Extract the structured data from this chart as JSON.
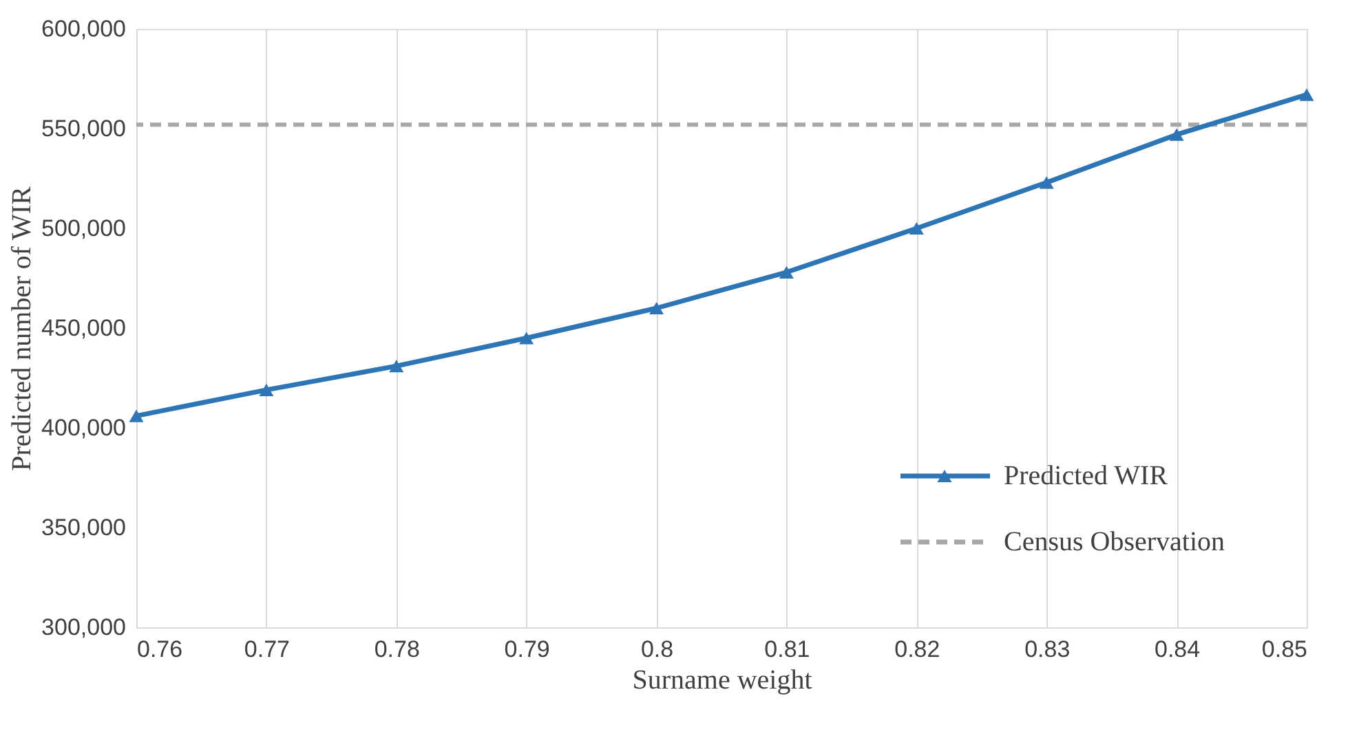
{
  "chart_data": {
    "type": "line",
    "xlabel": "Surname weight",
    "ylabel": "Predicted number of WIR",
    "x": [
      0.76,
      0.77,
      0.78,
      0.79,
      0.8,
      0.81,
      0.82,
      0.83,
      0.84,
      0.85
    ],
    "series": [
      {
        "name": "Predicted WIR",
        "color": "#2e75b6",
        "values": [
          406000,
          419000,
          431000,
          445000,
          460000,
          478000,
          500000,
          523000,
          547000,
          567000
        ]
      }
    ],
    "ref_lines": [
      {
        "axis": "y",
        "value": 552000,
        "label": "Census Observation",
        "color": "#a6a6a6",
        "line_style": "dashed"
      }
    ],
    "xlim": [
      0.76,
      0.85
    ],
    "xticks": [
      0.76,
      0.77,
      0.78,
      0.79,
      0.8,
      0.81,
      0.82,
      0.83,
      0.84,
      0.85
    ],
    "ylim": [
      300000,
      600000
    ],
    "yticks": [
      {
        "value": 300000,
        "label": "300,000"
      },
      {
        "value": 350000,
        "label": "350,000"
      },
      {
        "value": 400000,
        "label": "400,000"
      },
      {
        "value": 450000,
        "label": "450,000"
      },
      {
        "value": 500000,
        "label": "500,000"
      },
      {
        "value": 550000,
        "label": "550,000"
      },
      {
        "value": 600000,
        "label": "600,000"
      }
    ],
    "grid": "x",
    "legend": "bottom right",
    "marker": "triangle",
    "line_style": "solid"
  }
}
